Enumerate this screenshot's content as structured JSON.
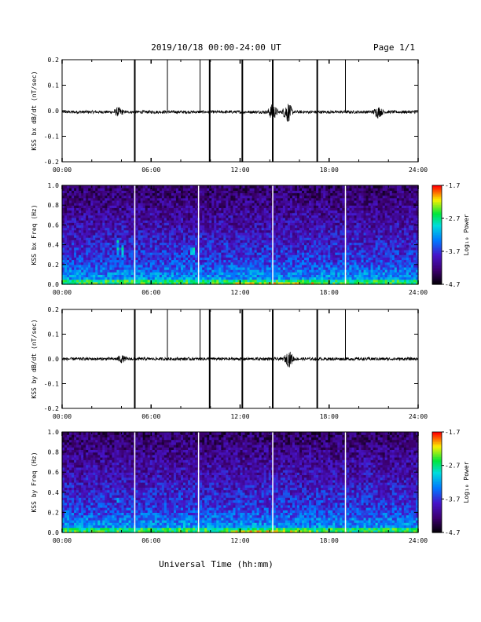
{
  "header": {
    "title": "2019/10/18  00:00-24:00 UT",
    "page": "Page 1/1"
  },
  "footer": {
    "xlabel": "Universal Time (hh:mm)"
  },
  "chart_data": [
    {
      "type": "line",
      "ylabel": "KSS bx dB/dt (nT/sec)",
      "ylim": [
        -0.2,
        0.2
      ],
      "xlim": [
        "00:00",
        "24:00"
      ],
      "yticks": [
        "0.2",
        "0.1",
        "0.0",
        "-0.1",
        "-0.2"
      ],
      "xticks": [
        "00:00",
        "06:00",
        "12:00",
        "18:00",
        "24:00"
      ],
      "baseline": -0.005,
      "bursts": [
        {
          "t": 3.8,
          "amp": 0.015
        },
        {
          "t": 14.2,
          "amp": 0.03
        },
        {
          "t": 15.2,
          "amp": 0.04
        },
        {
          "t": 21.3,
          "amp": 0.02
        }
      ],
      "spikes": [
        {
          "t": 4.9,
          "dir": "both"
        },
        {
          "t": 7.1,
          "dir": "up"
        },
        {
          "t": 9.3,
          "dir": "up"
        },
        {
          "t": 9.95,
          "dir": "both"
        },
        {
          "t": 12.15,
          "dir": "both"
        },
        {
          "t": 14.2,
          "dir": "both"
        },
        {
          "t": 17.2,
          "dir": "both"
        },
        {
          "t": 19.1,
          "dir": "up"
        }
      ]
    },
    {
      "type": "heatmap",
      "ylabel": "KSS bx Freq (Hz)",
      "ylim": [
        0.0,
        1.0
      ],
      "xlim": [
        "00:00",
        "24:00"
      ],
      "yticks": [
        "1.0",
        "0.8",
        "0.6",
        "0.4",
        "0.2",
        "0.0"
      ],
      "xticks": [
        "00:00",
        "06:00",
        "12:00",
        "18:00",
        "24:00"
      ],
      "colorbar": {
        "label": "Log₁₀ Power",
        "ticks": [
          "-1.7",
          "-2.7",
          "-3.7",
          "-4.7"
        ],
        "range": [
          -4.7,
          -1.7
        ]
      },
      "gaps": [
        4.9,
        9.2,
        14.2,
        19.1
      ],
      "features": [
        {
          "t": 3.7,
          "fmin": 0.3,
          "fmax": 0.45
        },
        {
          "t": 4.1,
          "fmin": 0.28,
          "fmax": 0.4
        },
        {
          "t": 8.8,
          "fmin": 0.3,
          "fmax": 0.38
        }
      ]
    },
    {
      "type": "line",
      "ylabel": "KSS by dB/dt (nT/sec)",
      "ylim": [
        -0.2,
        0.2
      ],
      "xlim": [
        "00:00",
        "24:00"
      ],
      "yticks": [
        "0.2",
        "0.1",
        "0.0",
        "-0.1",
        "-0.2"
      ],
      "xticks": [
        "00:00",
        "06:00",
        "12:00",
        "18:00",
        "24:00"
      ],
      "baseline": 0.0,
      "bursts": [
        {
          "t": 4.0,
          "amp": 0.012
        },
        {
          "t": 15.3,
          "amp": 0.03
        }
      ],
      "spikes": [
        {
          "t": 4.9,
          "dir": "both"
        },
        {
          "t": 7.1,
          "dir": "up"
        },
        {
          "t": 9.3,
          "dir": "up"
        },
        {
          "t": 9.95,
          "dir": "both"
        },
        {
          "t": 12.15,
          "dir": "both"
        },
        {
          "t": 14.2,
          "dir": "both"
        },
        {
          "t": 17.2,
          "dir": "both"
        },
        {
          "t": 19.1,
          "dir": "up"
        }
      ]
    },
    {
      "type": "heatmap",
      "ylabel": "KSS by Freq (Hz)",
      "ylim": [
        0.0,
        1.0
      ],
      "xlim": [
        "00:00",
        "24:00"
      ],
      "yticks": [
        "1.0",
        "0.8",
        "0.6",
        "0.4",
        "0.2",
        "0.0"
      ],
      "xticks": [
        "00:00",
        "06:00",
        "12:00",
        "18:00",
        "24:00"
      ],
      "colorbar": {
        "label": "Log₁₀ Power",
        "ticks": [
          "-1.7",
          "-2.7",
          "-3.7",
          "-4.7"
        ],
        "range": [
          -4.7,
          -1.7
        ]
      },
      "gaps": [
        4.9,
        9.2,
        14.2,
        19.1
      ],
      "features": [
        {
          "t": 3.7,
          "fmin": 0.3,
          "fmax": 0.36
        }
      ]
    }
  ]
}
